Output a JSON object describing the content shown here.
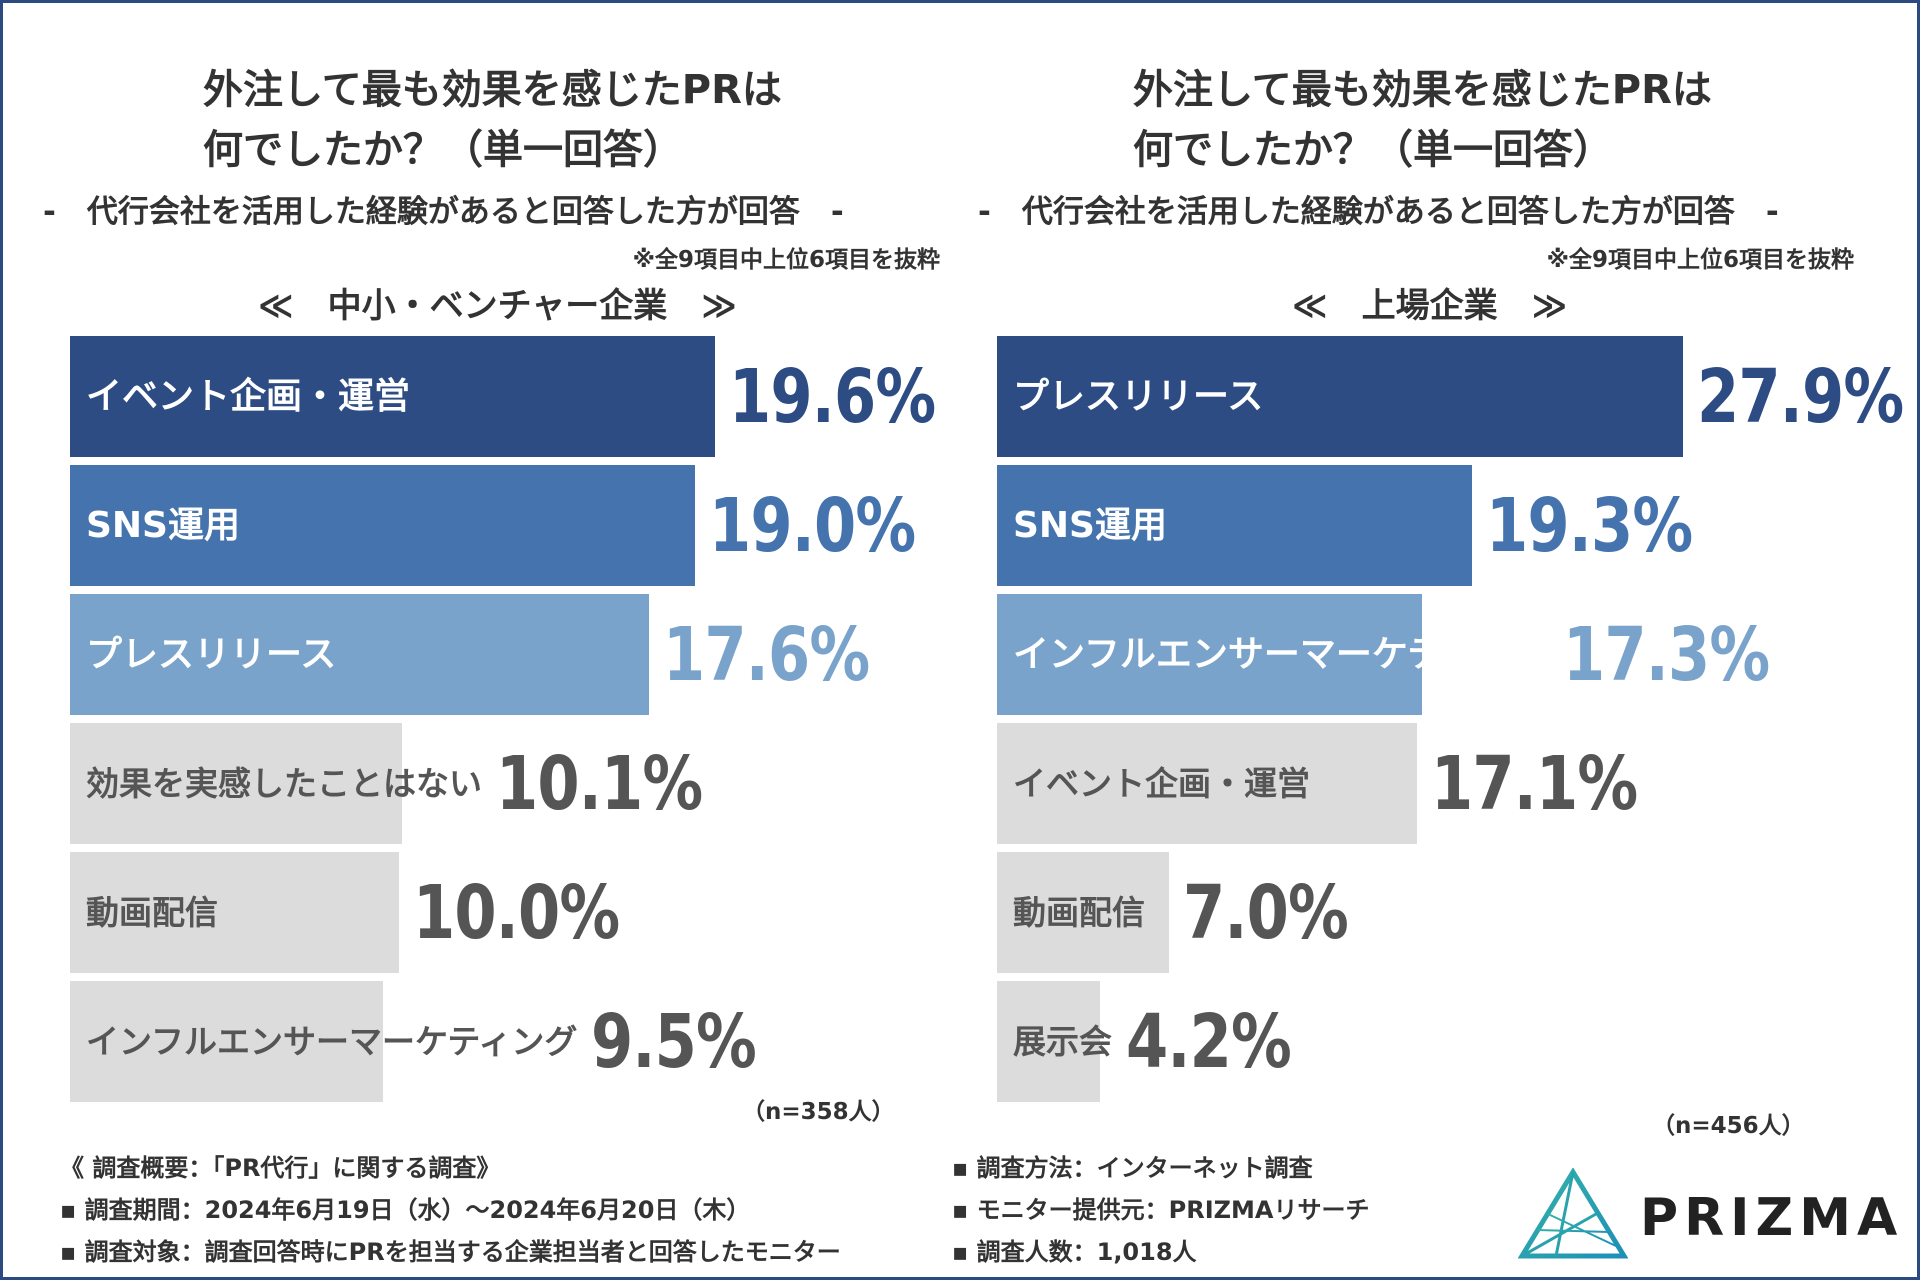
{
  "colors": {
    "frame": "#2b4a80",
    "bar_rank1": "#2e4c84",
    "bar_rank2": "#4573ad",
    "bar_rank3": "#7aa3cb",
    "bar_other": "#dcdcdc",
    "value_other": "#555555"
  },
  "chart_data": [
    {
      "type": "bar",
      "orientation": "horizontal",
      "title_line1": "外注して最も効果を感じたPRは",
      "title_line2": "何でしたか？（単一回答）",
      "subtitle": "-　代行会社を活用した経験があると回答した方が回答　-",
      "note": "※全9項目中上位6項目を抜粋",
      "segment": "≪　中小・ベンチャー企業　≫",
      "n_label": "（n=358人）",
      "unit": "%",
      "categories": [
        "イベント企画・運営",
        "SNS運用",
        "プレスリリース",
        "効果を実感したことはない",
        "動画配信",
        "インフルエンサーマーケティング"
      ],
      "values": [
        19.6,
        19.0,
        17.6,
        10.1,
        10.0,
        9.5
      ],
      "value_labels": [
        "19.6%",
        "19.0%",
        "17.6%",
        "10.1%",
        "10.0%",
        "9.5%"
      ],
      "xlim": [
        0,
        19.6
      ]
    },
    {
      "type": "bar",
      "orientation": "horizontal",
      "title_line1": "外注して最も効果を感じたPRは",
      "title_line2": "何でしたか？（単一回答）",
      "subtitle": "-　代行会社を活用した経験があると回答した方が回答　-",
      "note": "※全9項目中上位6項目を抜粋",
      "segment": "≪　上場企業　≫",
      "n_label": "（n=456人）",
      "unit": "%",
      "categories": [
        "プレスリリース",
        "SNS運用",
        "インフルエンサーマーケティング",
        "イベント企画・運営",
        "動画配信",
        "展示会"
      ],
      "values": [
        27.9,
        19.3,
        17.3,
        17.1,
        7.0,
        4.2
      ],
      "value_labels": [
        "27.9%",
        "19.3%",
        "17.3%",
        "17.1%",
        "7.0%",
        "4.2%"
      ],
      "xlim": [
        0,
        27.9
      ]
    }
  ],
  "footer": {
    "left": [
      "《 調査概要：「PR代行」に関する調査》",
      "▪ 調査期間：2024年6月19日（水）～2024年6月20日（木）",
      "▪ 調査対象：調査回答時にPRを担当する企業担当者と回答したモニター"
    ],
    "right": [
      "▪ 調査方法：インターネット調査",
      "▪ モニター提供元：PRIZMAリサーチ",
      "▪ 調査人数：1,018人"
    ]
  },
  "logo": {
    "text": "PRIZMA",
    "icon": "prizma-prism-icon"
  }
}
